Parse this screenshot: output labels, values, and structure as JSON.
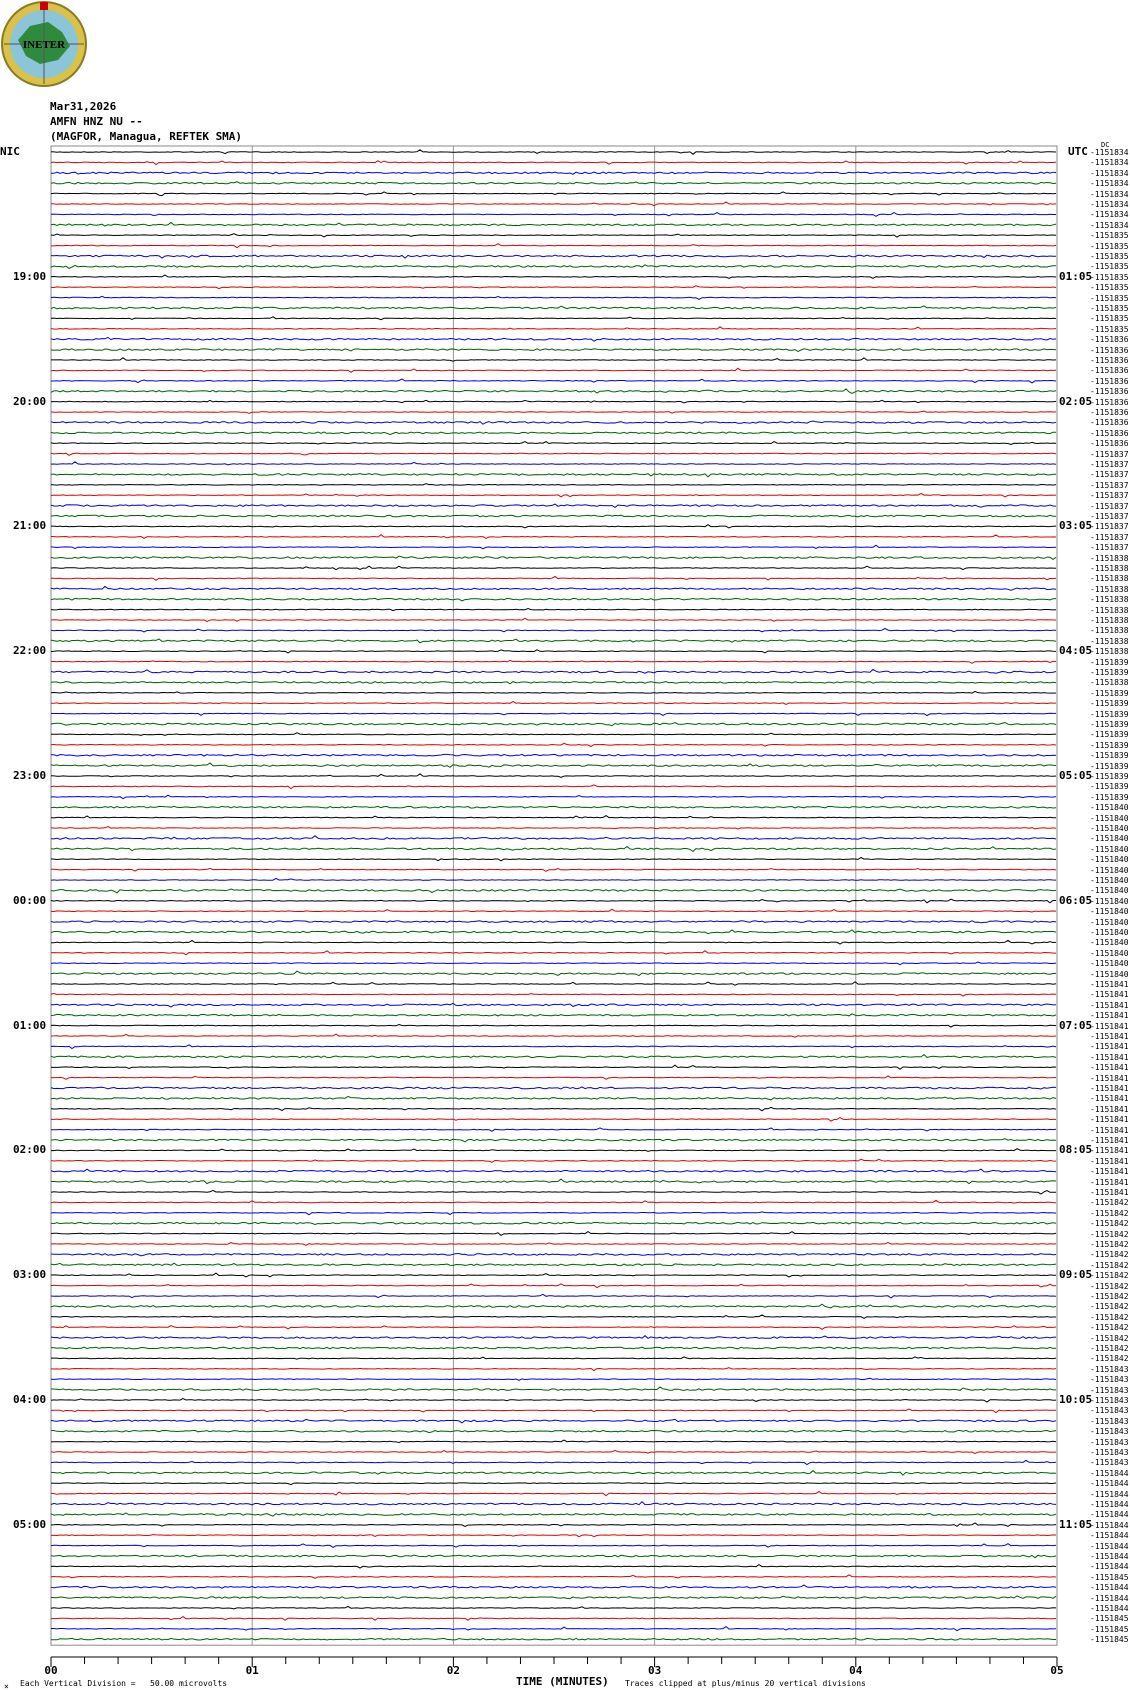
{
  "header": {
    "date": "Mar31,2026",
    "channel": "AMFN HNZ NU --",
    "station": "(MAGFOR, Managua, REFTEK SMA)",
    "logo_text": "INETER"
  },
  "chart_data": {
    "type": "line",
    "subtype": "helicorder",
    "xlabel": "TIME (MINUTES)",
    "x_ticks": [
      "00",
      "01",
      "02",
      "03",
      "04",
      "05"
    ],
    "xlim": [
      0,
      5
    ],
    "grid": "vertical lines each minute",
    "left_timezone": "NIC",
    "right_timezone": "UTC",
    "left_hour_labels": [
      "19:00",
      "20:00",
      "21:00",
      "22:00",
      "23:00",
      "00:00",
      "01:00",
      "02:00",
      "03:00",
      "04:00",
      "05:00"
    ],
    "right_hour_labels": [
      "01:05",
      "02:05",
      "03:05",
      "04:05",
      "05:05",
      "06:05",
      "07:05",
      "08:05",
      "09:05",
      "10:05",
      "11:05"
    ],
    "traces_per_hour": 12,
    "trace_count": 144,
    "trace_colors": [
      "#000000",
      "#e00000",
      "#0000e0",
      "#006000"
    ],
    "dc_label": "DC",
    "right_values": [
      "-1151834",
      "-1151834",
      "-1151834",
      "-1151834",
      "-1151834",
      "-1151834",
      "-1151834",
      "-1151834",
      "-1151835",
      "-1151835",
      "-1151835",
      "-1151835",
      "-1151835",
      "-1151835",
      "-1151835",
      "-1151835",
      "-1151835",
      "-1151835",
      "-1151836",
      "-1151836",
      "-1151836",
      "-1151836",
      "-1151836",
      "-1151836",
      "-1151836",
      "-1151836",
      "-1151836",
      "-1151836",
      "-1151836",
      "-1151837",
      "-1151837",
      "-1151837",
      "-1151837",
      "-1151837",
      "-1151837",
      "-1151837",
      "-1151837",
      "-1151837",
      "-1151837",
      "-1151838",
      "-1151838",
      "-1151838",
      "-1151838",
      "-1151838",
      "-1151838",
      "-1151838",
      "-1151838",
      "-1151838",
      "-1151838",
      "-1151839",
      "-1151839",
      "-1151838",
      "-1151839",
      "-1151839",
      "-1151839",
      "-1151839",
      "-1151839",
      "-1151839",
      "-1151839",
      "-1151839",
      "-1151839",
      "-1151839",
      "-1151839",
      "-1151840",
      "-1151840",
      "-1151840",
      "-1151840",
      "-1151840",
      "-1151840",
      "-1151840",
      "-1151840",
      "-1151840",
      "-1151840",
      "-1151840",
      "-1151840",
      "-1151840",
      "-1151840",
      "-1151840",
      "-1151840",
      "-1151840",
      "-1151841",
      "-1151841",
      "-1151841",
      "-1151841",
      "-1151841",
      "-1151841",
      "-1151841",
      "-1151841",
      "-1151841",
      "-1151841",
      "-1151841",
      "-1151841",
      "-1151841",
      "-1151841",
      "-1151841",
      "-1151841",
      "-1151841",
      "-1151841",
      "-1151841",
      "-1151841",
      "-1151841",
      "-1151842",
      "-1151842",
      "-1151842",
      "-1151842",
      "-1151842",
      "-1151842",
      "-1151842",
      "-1151842",
      "-1151842",
      "-1151842",
      "-1151842",
      "-1151842",
      "-1151842",
      "-1151842",
      "-1151842",
      "-1151842",
      "-1151843",
      "-1151843",
      "-1151843",
      "-1151843",
      "-1151843",
      "-1151843",
      "-1151843",
      "-1151843",
      "-1151843",
      "-1151843",
      "-1151844",
      "-1151844",
      "-1151844",
      "-1151844",
      "-1151844",
      "-1151844",
      "-1151844",
      "-1151844",
      "-1151844",
      "-1151844",
      "-1151845",
      "-1151844",
      "-1151844",
      "-1151844",
      "-1151845",
      "-1151845",
      "-1151845"
    ]
  },
  "footer": {
    "scale_note": "Each Vertical Division =   50.00 microvolts",
    "clip_note": "Traces clipped at plus/minus 20 vertical divisions",
    "corner_mark": "×"
  }
}
